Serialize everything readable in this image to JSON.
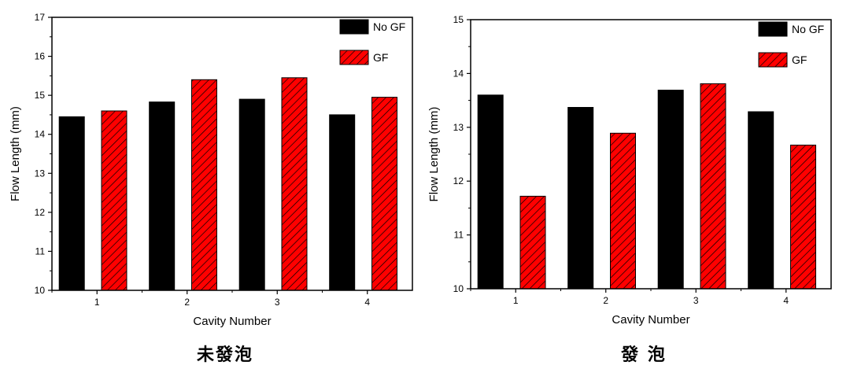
{
  "chart_data": [
    {
      "type": "bar",
      "caption": "未發泡",
      "categories": [
        "1",
        "2",
        "3",
        "4"
      ],
      "xlabel": "Cavity Number",
      "ylabel": "Flow Length (mm)",
      "ylim": [
        10,
        17
      ],
      "yticks": [
        "10",
        "11",
        "12",
        "13",
        "14",
        "15",
        "16",
        "17"
      ],
      "legend_position": "top-right",
      "series": [
        {
          "name": "No GF",
          "pattern": "solid",
          "values": [
            14.45,
            14.83,
            14.9,
            14.5
          ]
        },
        {
          "name": "GF",
          "pattern": "hatched",
          "values": [
            14.6,
            15.4,
            15.45,
            14.95
          ]
        }
      ]
    },
    {
      "type": "bar",
      "caption": "發 泡",
      "categories": [
        "1",
        "2",
        "3",
        "4"
      ],
      "xlabel": "Cavity Number",
      "ylabel": "Flow Length (mm)",
      "ylim": [
        10,
        15
      ],
      "yticks": [
        "10",
        "11",
        "12",
        "13",
        "14",
        "15"
      ],
      "legend_position": "top-right",
      "series": [
        {
          "name": "No GF",
          "pattern": "solid",
          "values": [
            13.6,
            13.37,
            13.69,
            13.29
          ]
        },
        {
          "name": "GF",
          "pattern": "hatched",
          "values": [
            11.72,
            12.89,
            13.81,
            12.67
          ]
        }
      ]
    }
  ],
  "colors": {
    "no_gf": "#000000",
    "gf_fill": "#ff0000",
    "hatch": "#000000"
  }
}
